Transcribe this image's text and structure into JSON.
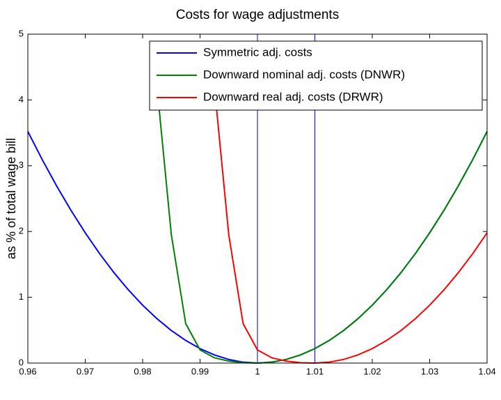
{
  "chart_data": {
    "type": "line",
    "title": "Costs for wage adjustments",
    "ylabel": "as % of total wage bill",
    "x": [
      0.96,
      0.9625,
      0.965,
      0.9675,
      0.97,
      0.9725,
      0.975,
      0.9775,
      0.98,
      0.9825,
      0.985,
      0.9875,
      0.99,
      0.9925,
      0.995,
      0.9975,
      1,
      1.0025,
      1.005,
      1.0075,
      1.01,
      1.0125,
      1.015,
      1.0175,
      1.02,
      1.0225,
      1.025,
      1.0275,
      1.03,
      1.0325,
      1.035,
      1.0375,
      1.04
    ],
    "series": [
      {
        "name": "Symmetric adj. costs",
        "color": "#0000ff",
        "values": [
          3.52,
          3.094,
          2.695,
          2.324,
          1.98,
          1.664,
          1.375,
          1.114,
          0.88,
          0.674,
          0.495,
          0.344,
          0.22,
          0.124,
          0.055,
          0.014,
          0,
          0.014,
          0.055,
          0.124,
          0.22,
          0.344,
          0.495,
          0.674,
          0.88,
          1.114,
          1.375,
          1.664,
          1.98,
          2.324,
          2.695,
          3.094,
          3.52
        ]
      },
      {
        "name": "Downward nominal adj. costs (DNWR)",
        "color": "#008000",
        "values": [
          null,
          null,
          null,
          null,
          null,
          null,
          null,
          null,
          null,
          4.2,
          1.95,
          0.6,
          0.2,
          0.08,
          0.03,
          0.005,
          0,
          0.014,
          0.055,
          0.124,
          0.22,
          0.344,
          0.495,
          0.674,
          0.88,
          1.114,
          1.375,
          1.664,
          1.98,
          2.324,
          2.695,
          3.094,
          3.52
        ]
      },
      {
        "name": "Downward real adj. costs (DRWR)",
        "color": "#ff0000",
        "values": [
          null,
          null,
          null,
          null,
          null,
          null,
          null,
          null,
          null,
          null,
          null,
          null,
          null,
          4.2,
          1.95,
          0.6,
          0.2,
          0.08,
          0.03,
          0.005,
          0,
          0.014,
          0.055,
          0.124,
          0.22,
          0.344,
          0.495,
          0.674,
          0.88,
          1.114,
          1.375,
          1.664,
          1.98
        ]
      }
    ],
    "vlines": [
      1,
      1.01
    ],
    "vline_color": "#0000ff",
    "xlim": [
      0.96,
      1.04
    ],
    "xticks": [
      0.96,
      0.97,
      0.98,
      0.99,
      1,
      1.01,
      1.02,
      1.03,
      1.04
    ],
    "ylim": [
      0,
      5
    ],
    "yticks": [
      0,
      1,
      2,
      3,
      4,
      5
    ],
    "legend": "top-right"
  }
}
